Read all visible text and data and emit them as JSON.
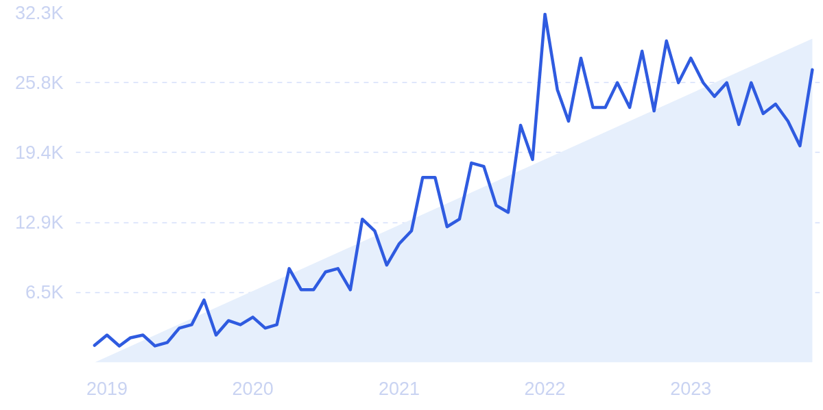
{
  "chart_data": {
    "type": "line",
    "x": [
      "2018-12",
      "2019-01",
      "2019-02",
      "2019-03",
      "2019-04",
      "2019-05",
      "2019-06",
      "2019-07",
      "2019-08",
      "2019-09",
      "2019-10",
      "2019-11",
      "2019-12",
      "2020-01",
      "2020-02",
      "2020-03",
      "2020-04",
      "2020-05",
      "2020-06",
      "2020-07",
      "2020-08",
      "2020-09",
      "2020-10",
      "2020-11",
      "2020-12",
      "2021-01",
      "2021-02",
      "2021-03",
      "2021-04",
      "2021-05",
      "2021-06",
      "2021-07",
      "2021-08",
      "2021-09",
      "2021-10",
      "2021-11",
      "2021-12",
      "2022-01",
      "2022-02",
      "2022-03",
      "2022-04",
      "2022-05",
      "2022-06",
      "2022-07",
      "2022-08",
      "2022-09",
      "2022-10",
      "2022-11",
      "2022-12",
      "2023-01",
      "2023-02",
      "2023-03",
      "2023-04",
      "2023-05",
      "2023-06",
      "2023-07",
      "2023-08",
      "2023-09",
      "2023-10",
      "2023-11"
    ],
    "series": [
      {
        "type": "area",
        "color": "#e6effc",
        "x": [
          "2018-12",
          "2023-11"
        ],
        "values": [
          0,
          29900
        ]
      },
      {
        "color": "#2f5be0",
        "values": [
          1580,
          2530,
          1520,
          2280,
          2530,
          1520,
          1840,
          3170,
          3480,
          5760,
          2530,
          3860,
          3480,
          4180,
          3170,
          3480,
          8670,
          6710,
          6710,
          8360,
          8670,
          6710,
          13230,
          12150,
          8990,
          10950,
          12150,
          17090,
          17090,
          12530,
          13230,
          18420,
          18100,
          14500,
          13860,
          21900,
          18740,
          32160,
          25190,
          22280,
          28100,
          23550,
          23550,
          25830,
          23550,
          28740,
          23230,
          29690,
          25830,
          28100,
          25830,
          24560,
          25830,
          21970,
          25830,
          22980,
          23860,
          22280,
          20000,
          27030
        ]
      }
    ],
    "xlim": [
      "2018-10-15",
      "2023-11-20"
    ],
    "xticks": [
      {
        "value": "2019-01",
        "label": "2019"
      },
      {
        "value": "2020-01",
        "label": "2020"
      },
      {
        "value": "2021-01",
        "label": "2021"
      },
      {
        "value": "2022-01",
        "label": "2022"
      },
      {
        "value": "2023-01",
        "label": "2023"
      }
    ],
    "ylim": [
      0,
      32300
    ],
    "yticks": [
      {
        "value": 6460,
        "label": "6.5K"
      },
      {
        "value": 12920,
        "label": "12.9K"
      },
      {
        "value": 19380,
        "label": "19.4K"
      },
      {
        "value": 25840,
        "label": "25.8K"
      },
      {
        "value": 32300,
        "label": "32.3K"
      }
    ],
    "grid": "y",
    "line_style": "solid",
    "marker": "none"
  }
}
